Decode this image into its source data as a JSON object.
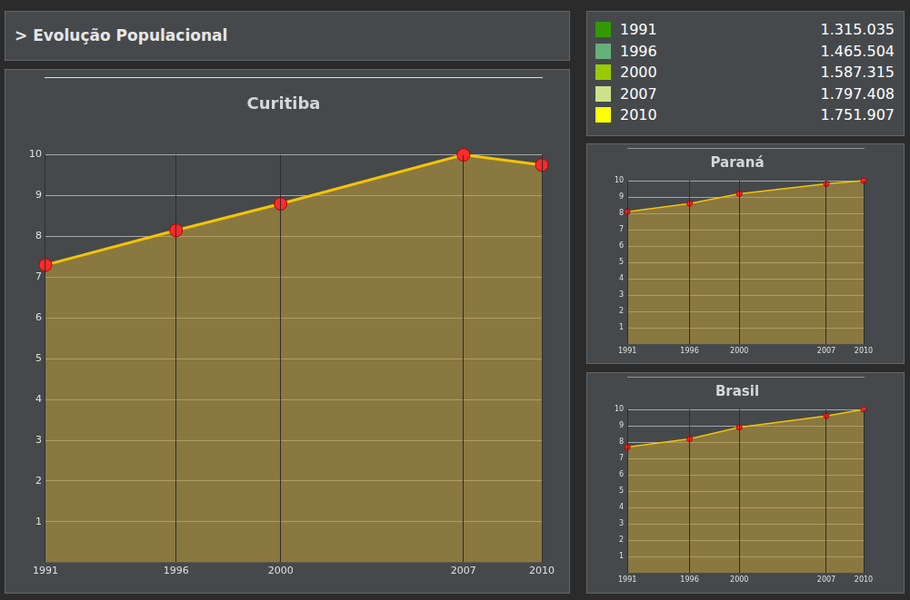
{
  "header": {
    "title": "> Evolução Populacional"
  },
  "table": {
    "rows": [
      {
        "label": "1991",
        "value": "1.315.035",
        "color": "#339900"
      },
      {
        "label": "1996",
        "value": "1.465.504",
        "color": "#66b07a"
      },
      {
        "label": "2000",
        "value": "1.587.315",
        "color": "#99cc00"
      },
      {
        "label": "2007",
        "value": "1.797.408",
        "color": "#cce38a"
      },
      {
        "label": "2010",
        "value": "1.751.907",
        "color": "#ffff00"
      }
    ]
  },
  "chart_data": [
    {
      "type": "area",
      "title": "Curitiba",
      "x": [
        1991,
        1996,
        2000,
        2007,
        2010
      ],
      "values": [
        7.3,
        8.15,
        8.8,
        10,
        9.75
      ],
      "color": "#f5c400",
      "marker": "circle",
      "xlim": [
        1991,
        2010
      ],
      "xticks": [
        1991,
        1996,
        2000,
        2007,
        2010
      ],
      "ylim": [
        0,
        10
      ],
      "yticks": [
        1,
        2,
        3,
        4,
        5,
        6,
        7,
        8,
        9,
        10
      ],
      "grid": true
    },
    {
      "type": "area",
      "title": "Paraná",
      "x": [
        1991,
        1996,
        2000,
        2007,
        2010
      ],
      "values": [
        8.1,
        8.6,
        9.2,
        9.8,
        10
      ],
      "color": "#f5c400",
      "marker": "circle",
      "xlim": [
        1991,
        2010
      ],
      "xticks": [
        1991,
        1996,
        2000,
        2007,
        2010
      ],
      "ylim": [
        0,
        10
      ],
      "yticks": [
        1,
        2,
        3,
        4,
        5,
        6,
        7,
        8,
        9,
        10
      ],
      "grid": true
    },
    {
      "type": "area",
      "title": "Brasil",
      "x": [
        1991,
        1996,
        2000,
        2007,
        2010
      ],
      "values": [
        7.7,
        8.2,
        8.9,
        9.6,
        10
      ],
      "color": "#f5c400",
      "marker": "circle",
      "xlim": [
        1991,
        2010
      ],
      "xticks": [
        1991,
        1996,
        2000,
        2007,
        2010
      ],
      "ylim": [
        0,
        10
      ],
      "yticks": [
        1,
        2,
        3,
        4,
        5,
        6,
        7,
        8,
        9,
        10
      ],
      "grid": true
    }
  ]
}
